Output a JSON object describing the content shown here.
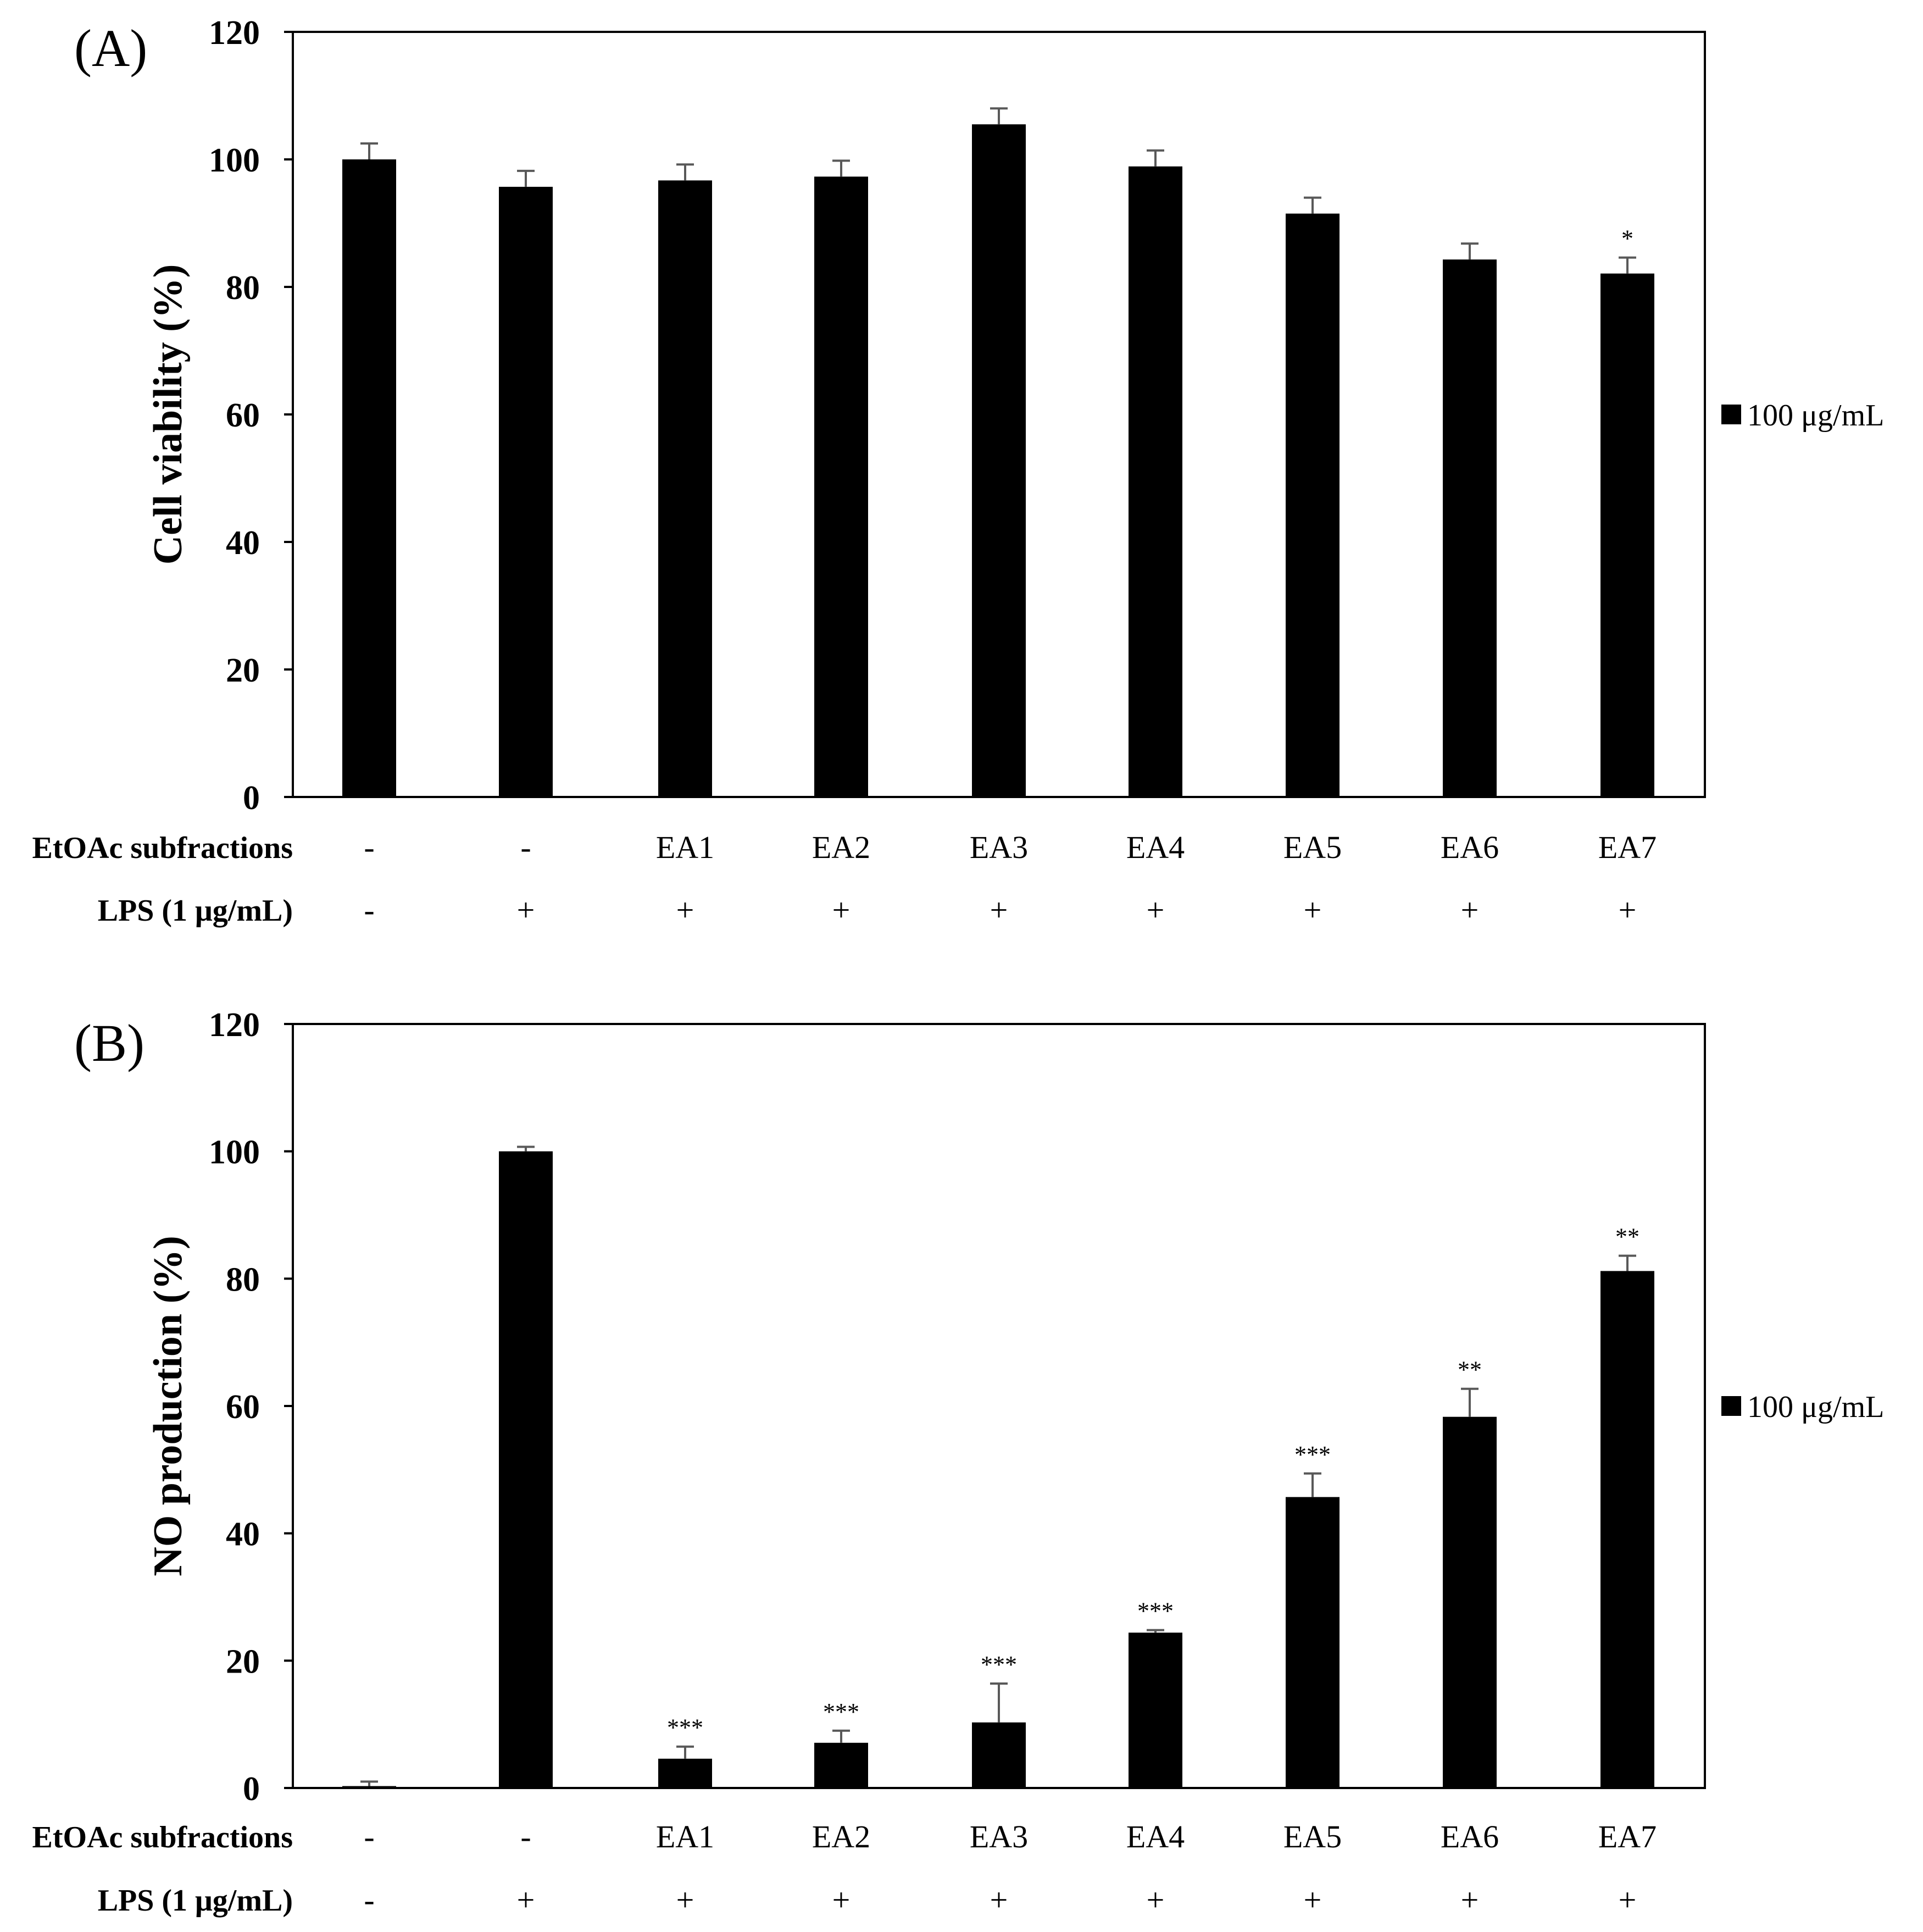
{
  "charts": [
    {
      "panel_label": "(A)",
      "ylabel": "Cell viability (%)",
      "yticks": [
        "0",
        "20",
        "40",
        "60",
        "80",
        "100",
        "120"
      ],
      "legend": "100 μg/mL",
      "rows": [
        {
          "label": "EtOAc subfractions",
          "values": [
            "-",
            "-",
            "EA1",
            "EA2",
            "EA3",
            "EA4",
            "EA5",
            "EA6",
            "EA7"
          ]
        },
        {
          "label": "LPS (1 μg/mL)",
          "values": [
            "-",
            "+",
            "+",
            "+",
            "+",
            "+",
            "+",
            "+",
            "+"
          ]
        }
      ],
      "significance": [
        "",
        "",
        "",
        "",
        "",
        "",
        "",
        "",
        "*"
      ]
    },
    {
      "panel_label": "(B)",
      "ylabel": "NO production (%)",
      "yticks": [
        "0",
        "20",
        "40",
        "60",
        "80",
        "100",
        "120"
      ],
      "legend": "100 μg/mL",
      "rows": [
        {
          "label": "EtOAc subfractions",
          "values": [
            "-",
            "-",
            "EA1",
            "EA2",
            "EA3",
            "EA4",
            "EA5",
            "EA6",
            "EA7"
          ]
        },
        {
          "label": "LPS (1 μg/mL)",
          "values": [
            "-",
            "+",
            "+",
            "+",
            "+",
            "+",
            "+",
            "+",
            "+"
          ]
        }
      ],
      "significance": [
        "",
        "",
        "***",
        "***",
        "***",
        "***",
        "***",
        "**",
        "**"
      ]
    }
  ],
  "chart_data": [
    {
      "type": "bar",
      "title": "(A)",
      "xlabel": "",
      "ylabel": "Cell viability (%)",
      "ylim": [
        0,
        120
      ],
      "categories": [
        "-/-",
        "-/+",
        "EA1/+",
        "EA2/+",
        "EA3/+",
        "EA4/+",
        "EA5/+",
        "EA6/+",
        "EA7/+"
      ],
      "series": [
        {
          "name": "100 μg/mL",
          "values": [
            100,
            95.7,
            96.7,
            97.3,
            105.5,
            98.9,
            91.5,
            84.3,
            82.1
          ],
          "errors": [
            2.5,
            2.5,
            2.5,
            2.5,
            2.5,
            2.5,
            2.5,
            2.5,
            2.5
          ]
        }
      ],
      "legend_position": "right"
    },
    {
      "type": "bar",
      "title": "(B)",
      "xlabel": "",
      "ylabel": "NO production (%)",
      "ylim": [
        0,
        120
      ],
      "categories": [
        "-/-",
        "-/+",
        "EA1/+",
        "EA2/+",
        "EA3/+",
        "EA4/+",
        "EA5/+",
        "EA6/+",
        "EA7/+"
      ],
      "series": [
        {
          "name": "100 μg/mL",
          "values": [
            0.3,
            100,
            4.6,
            7.1,
            10.3,
            24.4,
            45.7,
            58.3,
            81.2
          ],
          "errors": [
            0.7,
            0.7,
            1.9,
            1.9,
            6.1,
            0.4,
            3.7,
            4.4,
            2.4
          ]
        }
      ],
      "legend_position": "right"
    }
  ]
}
